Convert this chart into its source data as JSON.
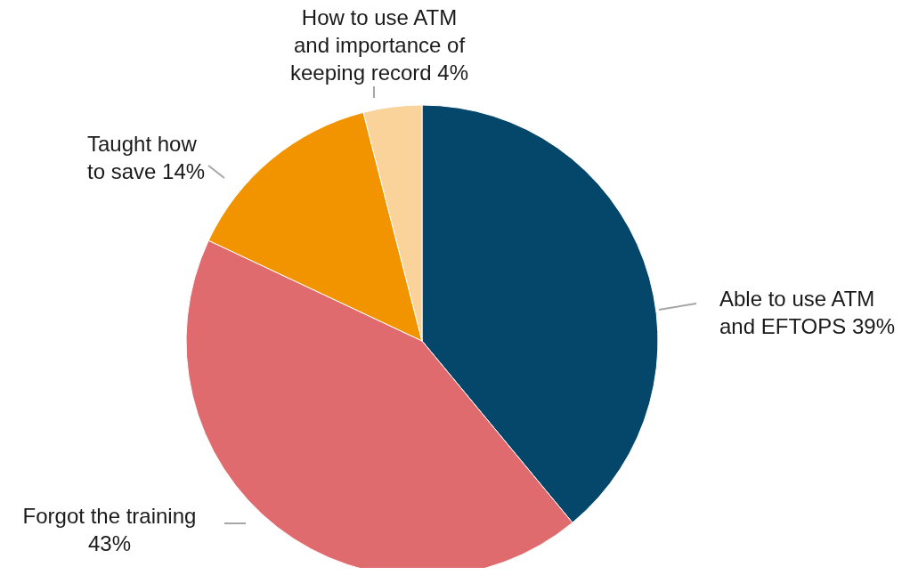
{
  "chart_data": {
    "type": "pie",
    "categories": [
      "Able to use ATM and EFTOPS",
      "Forgot the training",
      "Taught how to save",
      "How to use ATM and importance of keeping record"
    ],
    "values": [
      39,
      43,
      14,
      4
    ],
    "value_labels": [
      "39%",
      "43%",
      "14%",
      "4%"
    ],
    "colors": [
      "#05476a",
      "#e06b6e",
      "#f29400",
      "#fad39b"
    ]
  }
}
